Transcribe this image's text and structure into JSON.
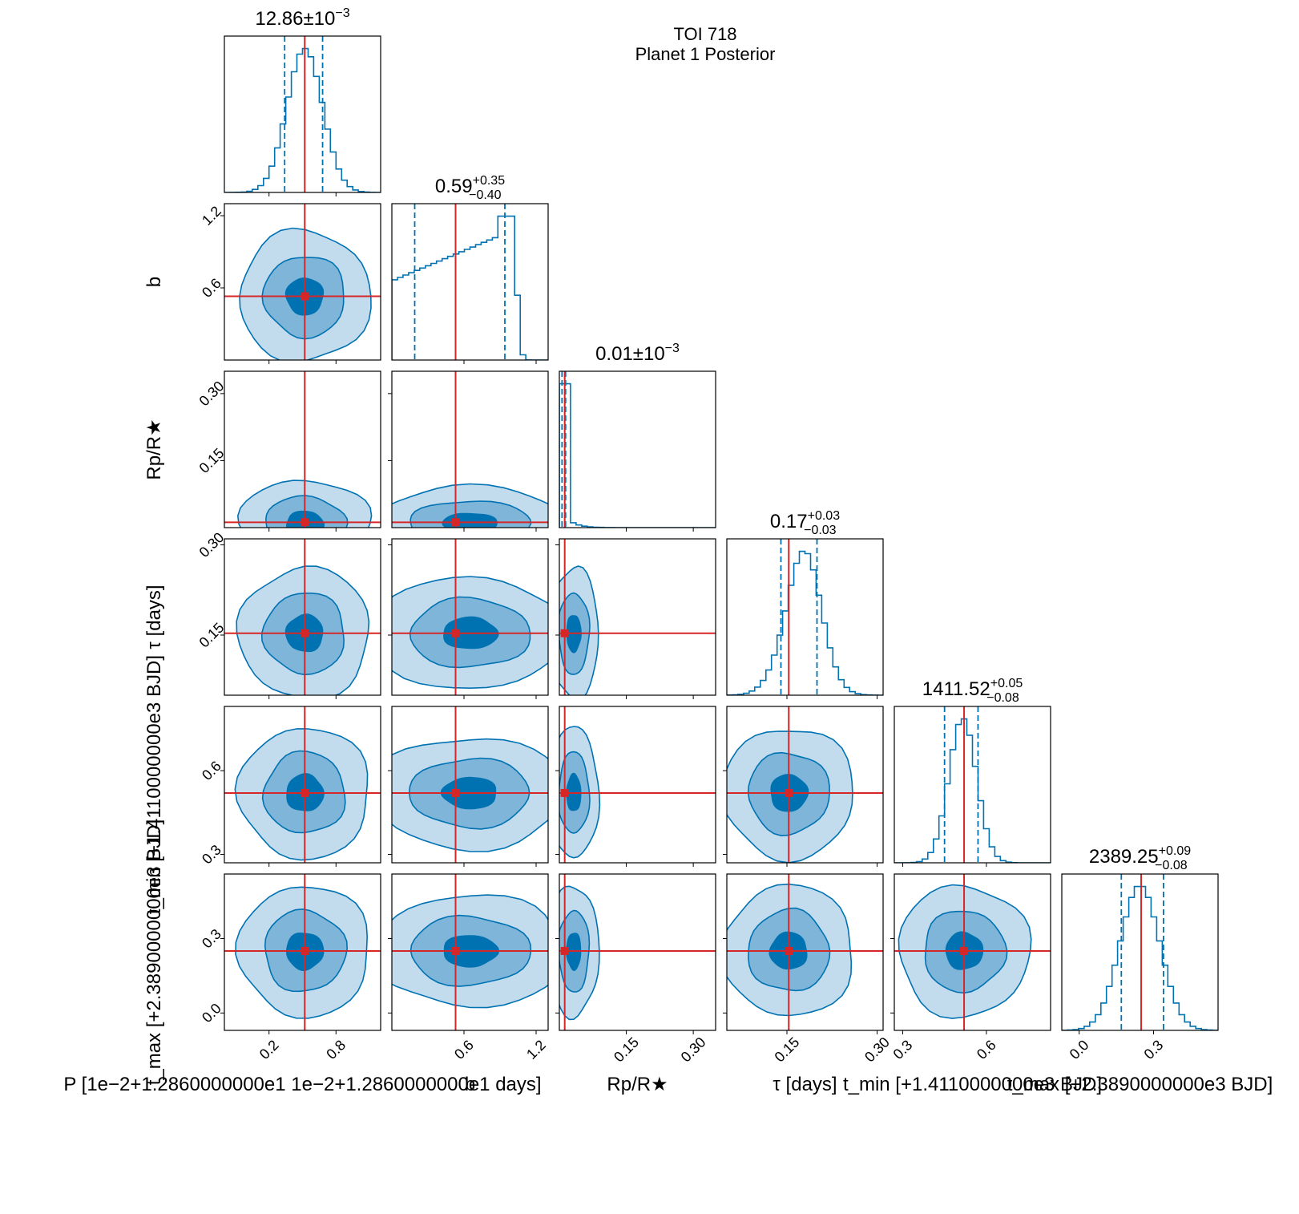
{
  "title_line1": "TOI 718",
  "title_line2": "Planet 1 Posterior",
  "colors": {
    "contour": "#0072b2",
    "fill_1sigma": "#0072b2",
    "fill_2sigma": "#7eb5d8",
    "fill_3sigma": "#c2dcee",
    "truth": "#d62728",
    "quantile": "#0072b2"
  },
  "chart_data": {
    "type": "corner",
    "params": [
      {
        "key": "P",
        "title_value": "12.86",
        "title_plus": "",
        "title_minus": "",
        "title_pm_text": "±10",
        "title_pm_exp": "−3",
        "xlabel": "P [1e−2+1.2860000000e1 1e−2+1.2860000000e1   days]",
        "ylabel": "",
        "range": [
          -0.2,
          1.2
        ],
        "ticks": [
          0.2,
          0.8
        ],
        "tick_labels": [
          "0.2",
          "0.8"
        ],
        "truth": 0.52,
        "quantiles": [
          0.34,
          0.68
        ],
        "hist_shape": "normal",
        "hist_center": 0.52,
        "hist_width": 0.16
      },
      {
        "key": "b",
        "title_value": "0.59",
        "title_plus": "+0.35",
        "title_minus": "−0.40",
        "xlabel": "b",
        "ylabel": "b",
        "range": [
          0.0,
          1.3
        ],
        "ticks": [
          0.6,
          1.2
        ],
        "tick_labels": [
          "0.6",
          "1.2"
        ],
        "truth": 0.53,
        "quantiles": [
          0.19,
          0.94
        ],
        "hist_shape": "flat-to-edge",
        "hist_center": 0.6,
        "hist_width": 0.35
      },
      {
        "key": "Rp/Rs",
        "title_value": "0.01",
        "title_plus": "",
        "title_minus": "",
        "title_pm_text": "±10",
        "title_pm_exp": "−3",
        "xlabel": "Rp/R★",
        "ylabel": "Rp/R★",
        "range": [
          0.0,
          0.35
        ],
        "ticks": [
          0.15,
          0.3
        ],
        "tick_labels": [
          "0.15",
          "0.30"
        ],
        "truth": 0.012,
        "quantiles": [
          0.006,
          0.014
        ],
        "hist_shape": "spike",
        "hist_center": 0.01,
        "hist_width": 0.005
      },
      {
        "key": "tau",
        "title_value": "0.17",
        "title_plus": "+0.03",
        "title_minus": "−0.03",
        "xlabel": "τ [days]",
        "ylabel": "τ [days]",
        "range": [
          0.05,
          0.31
        ],
        "ticks": [
          0.15,
          0.3
        ],
        "tick_labels": [
          "0.15",
          "0.30"
        ],
        "truth": 0.153,
        "quantiles": [
          0.14,
          0.2
        ],
        "hist_shape": "skewnormal",
        "hist_center": 0.168,
        "hist_width": 0.032
      },
      {
        "key": "t_min",
        "title_value": "1411.52",
        "title_plus": "+0.05",
        "title_minus": "−0.08",
        "xlabel": "t_min [+1.4110000000e3 BJD]",
        "ylabel": "t_min [+1.4110000000e3 BJD]",
        "range": [
          0.27,
          0.83
        ],
        "ticks": [
          0.3,
          0.6
        ],
        "tick_labels": [
          "0.3",
          "0.6"
        ],
        "truth": 0.52,
        "quantiles": [
          0.45,
          0.57
        ],
        "hist_shape": "normal",
        "hist_center": 0.515,
        "hist_width": 0.05
      },
      {
        "key": "t_max",
        "title_value": "2389.25",
        "title_plus": "+0.09",
        "title_minus": "−0.08",
        "xlabel": "t_max [+2.3890000000e3 BJD]",
        "ylabel": "t_max [+2.3890000000e3 BJD]",
        "range": [
          -0.07,
          0.56
        ],
        "ticks": [
          0.0,
          0.3
        ],
        "tick_labels": [
          "0.0",
          "0.3"
        ],
        "truth": 0.25,
        "quantiles": [
          0.17,
          0.34
        ],
        "hist_shape": "normal",
        "hist_center": 0.245,
        "hist_width": 0.08
      }
    ]
  }
}
